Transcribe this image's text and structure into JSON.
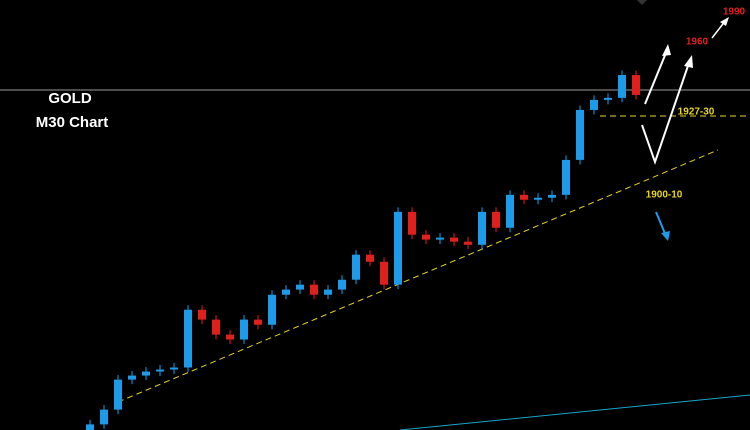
{
  "chart_data": {
    "type": "candlestick",
    "title": "GOLD",
    "subtitle": "M30 Chart",
    "annotations": [
      "1990",
      "1960",
      "1927-30",
      "1900-10"
    ],
    "ylim": [
      1786,
      1978
    ],
    "up_color": "#1e9be8",
    "down_color": "#e0201c",
    "open": [
      1786,
      1788.5,
      1795.1,
      1808.5,
      1810.3,
      1812.1,
      1813.0,
      1813.9,
      1839.7,
      1835.3,
      1828.6,
      1826.4,
      1835.3,
      1833.0,
      1846.4,
      1848.7,
      1850.9,
      1846.4,
      1848.7,
      1853.1,
      1864.3,
      1861.1,
      1850.9,
      1883.4,
      1873.2,
      1871.0,
      1871.9,
      1870.1,
      1868.7,
      1883.4,
      1876.3,
      1891.0,
      1888.8,
      1889.7,
      1891.0,
      1906.6,
      1928.9,
      1933.4,
      1934.3,
      1944.5
    ],
    "high": [
      1790.5,
      1797.1,
      1810.5,
      1812.3,
      1814.1,
      1815.0,
      1815.9,
      1841.7,
      1841.7,
      1837.3,
      1830.6,
      1837.3,
      1837.3,
      1848.4,
      1850.7,
      1852.9,
      1852.9,
      1850.7,
      1855.1,
      1866.3,
      1866.3,
      1863.1,
      1885.4,
      1885.4,
      1875.2,
      1873.9,
      1873.9,
      1872.1,
      1885.4,
      1885.4,
      1893.0,
      1893.0,
      1891.7,
      1893.0,
      1908.6,
      1930.9,
      1935.4,
      1936.3,
      1946.5,
      1946.5
    ],
    "low": [
      1784,
      1786.5,
      1793.1,
      1806.5,
      1808.3,
      1810.1,
      1811.0,
      1811.9,
      1833.3,
      1826.6,
      1824.4,
      1824.4,
      1831.0,
      1831.0,
      1844.4,
      1846.7,
      1844.4,
      1844.4,
      1846.7,
      1851.1,
      1859.1,
      1848.9,
      1848.9,
      1871.2,
      1869.0,
      1869.0,
      1868.1,
      1866.7,
      1866.7,
      1874.3,
      1874.3,
      1886.8,
      1886.8,
      1887.7,
      1889.0,
      1904.6,
      1926.9,
      1931.4,
      1932.3,
      1933.6
    ],
    "close": [
      1788.5,
      1795.1,
      1808.5,
      1810.3,
      1812.1,
      1813.0,
      1813.9,
      1839.7,
      1835.3,
      1828.6,
      1826.4,
      1835.3,
      1833.0,
      1846.4,
      1848.7,
      1850.9,
      1846.4,
      1848.7,
      1853.1,
      1864.3,
      1861.1,
      1850.9,
      1883.4,
      1873.2,
      1871.0,
      1871.9,
      1870.1,
      1868.7,
      1883.4,
      1876.3,
      1891.0,
      1888.8,
      1889.7,
      1891.0,
      1906.6,
      1928.9,
      1933.4,
      1934.3,
      1944.5,
      1935.6
    ]
  }
}
